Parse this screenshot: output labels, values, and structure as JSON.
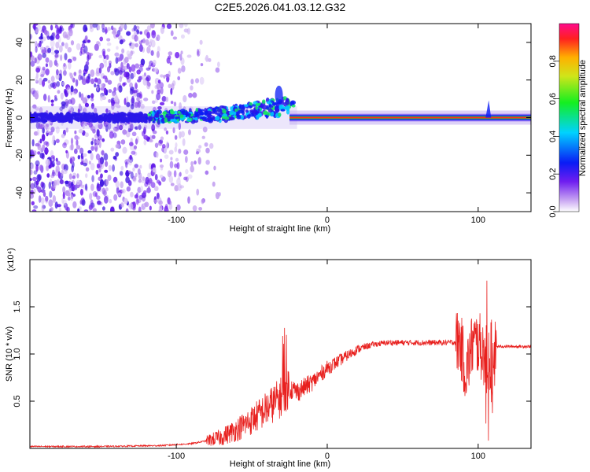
{
  "title": "C2E5.2026.041.03.12.G32",
  "chart_data": [
    {
      "type": "heatmap",
      "name": "spectrogram",
      "xlabel": "Height of straight line (km)",
      "ylabel": "Frequency (Hz)",
      "xlim": [
        -197,
        135
      ],
      "ylim": [
        -50,
        50
      ],
      "xticks": [
        -100,
        0,
        100
      ],
      "yticks": [
        -40,
        -20,
        0,
        20,
        40
      ],
      "colorbar": {
        "label": "Normalized spectral amplitude",
        "range": [
          0,
          1
        ],
        "ticks": [
          0.0,
          0.2,
          0.4,
          0.6,
          0.8
        ]
      },
      "features": [
        {
          "description": "scattered noise",
          "x_range": [
            -197,
            -95
          ],
          "freq_range": [
            -50,
            50
          ]
        },
        {
          "description": "signal band rising",
          "x": [
            -120,
            -90,
            -70,
            -50,
            -40,
            -30
          ],
          "freq": [
            0,
            1,
            2,
            4,
            5,
            6
          ]
        },
        {
          "description": "strong carrier",
          "x_range": [
            -25,
            135
          ],
          "freq": 0
        }
      ]
    },
    {
      "type": "line",
      "name": "snr",
      "xlabel": "Height of straight line (km)",
      "ylabel": "SNR (10 * v/v)",
      "y_scale_label": "(x10⁴)",
      "xlim": [
        -197,
        135
      ],
      "ylim": [
        0,
        2.0
      ],
      "xticks": [
        -100,
        0,
        100
      ],
      "yticks": [
        0.5,
        1.0,
        1.5
      ],
      "color": "#e8201e",
      "series": [
        {
          "name": "SNR",
          "x": [
            -197,
            -150,
            -110,
            -90,
            -80,
            -70,
            -60,
            -50,
            -40,
            -30,
            -26,
            -20,
            -10,
            0,
            10,
            20,
            30,
            40,
            60,
            80,
            88,
            92,
            96,
            100,
            104,
            108,
            112,
            120,
            135
          ],
          "y": [
            0.02,
            0.02,
            0.03,
            0.05,
            0.08,
            0.12,
            0.2,
            0.3,
            0.42,
            0.55,
            0.65,
            0.6,
            0.7,
            0.85,
            0.95,
            1.05,
            1.1,
            1.12,
            1.12,
            1.12,
            1.13,
            0.8,
            1.1,
            1.12,
            1.0,
            0.6,
            1.08,
            1.08,
            1.08
          ]
        }
      ]
    }
  ]
}
